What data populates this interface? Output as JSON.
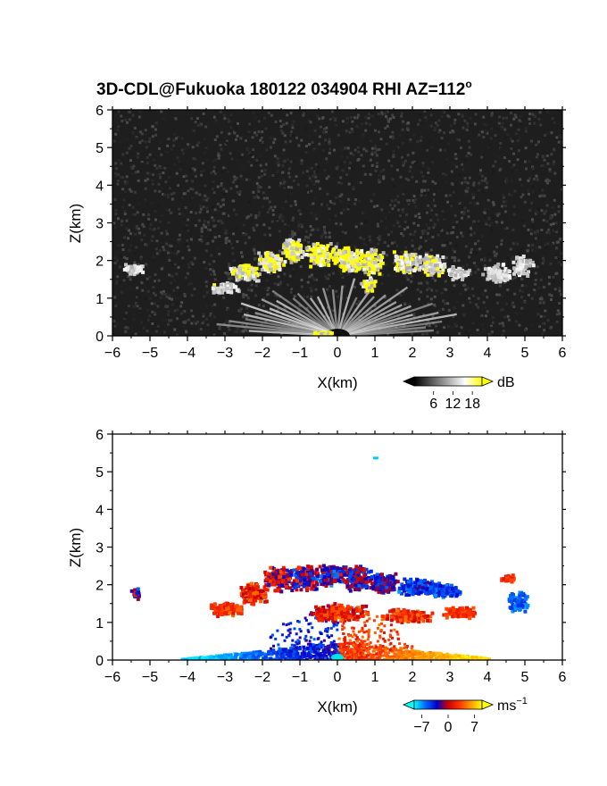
{
  "title": "3D-CDL@Fukuoka 180122 034904 RHI AZ=112",
  "title_degree": "o",
  "chart_data": [
    {
      "type": "heatmap",
      "panel": "reflectivity",
      "xlabel": "X(km)",
      "ylabel": "Z(km)",
      "xlim": [
        -6,
        6
      ],
      "ylim": [
        0,
        6
      ],
      "xticks": [
        "-6",
        "-5",
        "-4",
        "-3",
        "-2",
        "-1",
        "0",
        "1",
        "2",
        "3",
        "4",
        "5",
        "6"
      ],
      "yticks": [
        "0",
        "1",
        "2",
        "3",
        "4",
        "5",
        "6"
      ],
      "background": "noise",
      "colorbar": {
        "unit": "dB",
        "ticks": [
          "6",
          "12",
          "18"
        ],
        "range": [
          0,
          21
        ],
        "colors": [
          "#000000",
          "#555555",
          "#aaaaaa",
          "#ffffff",
          "#ffff00"
        ]
      },
      "features": [
        {
          "kind": "ground-clutter-fan",
          "x": 0,
          "z": 0,
          "radius_km": 1.6
        },
        {
          "kind": "cloud-layer",
          "x_range": [
            -3.6,
            5.2
          ],
          "z_range": [
            1.0,
            2.7
          ],
          "max_dB": 20
        },
        {
          "kind": "cloud-patch",
          "x_range": [
            -5.9,
            -5.2
          ],
          "z_range": [
            1.6,
            2.0
          ],
          "max_dB": 12
        }
      ]
    },
    {
      "type": "heatmap",
      "panel": "doppler-velocity",
      "xlabel": "X(km)",
      "ylabel": "Z(km)",
      "xlim": [
        -6,
        6
      ],
      "ylim": [
        0,
        6
      ],
      "xticks": [
        "-6",
        "-5",
        "-4",
        "-3",
        "-2",
        "-1",
        "0",
        "1",
        "2",
        "3",
        "4",
        "5",
        "6"
      ],
      "yticks": [
        "0",
        "1",
        "2",
        "3",
        "4",
        "5",
        "6"
      ],
      "background": "white",
      "colorbar": {
        "unit": "ms",
        "unit_sup": "−1",
        "ticks": [
          "−7",
          "0",
          "7"
        ],
        "range": [
          -9,
          9
        ],
        "colors": [
          "#00ffff",
          "#0066ff",
          "#0000cc",
          "#cc0000",
          "#ff3300",
          "#ff9900",
          "#ffff00"
        ]
      },
      "features": [
        {
          "kind": "near-ground-flow",
          "x_range": [
            -4.2,
            4.0
          ],
          "z_range": [
            0,
            0.4
          ],
          "velocity_left": -6,
          "velocity_right": 6
        },
        {
          "kind": "cloud-layer",
          "x_range": [
            -3.6,
            5.2
          ],
          "z_range": [
            1.0,
            2.8
          ],
          "velocity_range": [
            -7,
            5
          ]
        },
        {
          "kind": "isolated-echo",
          "x": -5.4,
          "z": 1.8,
          "velocity": -3
        },
        {
          "kind": "isolated-echo",
          "x": 1.0,
          "z": 5.4,
          "velocity": -8
        }
      ]
    }
  ]
}
